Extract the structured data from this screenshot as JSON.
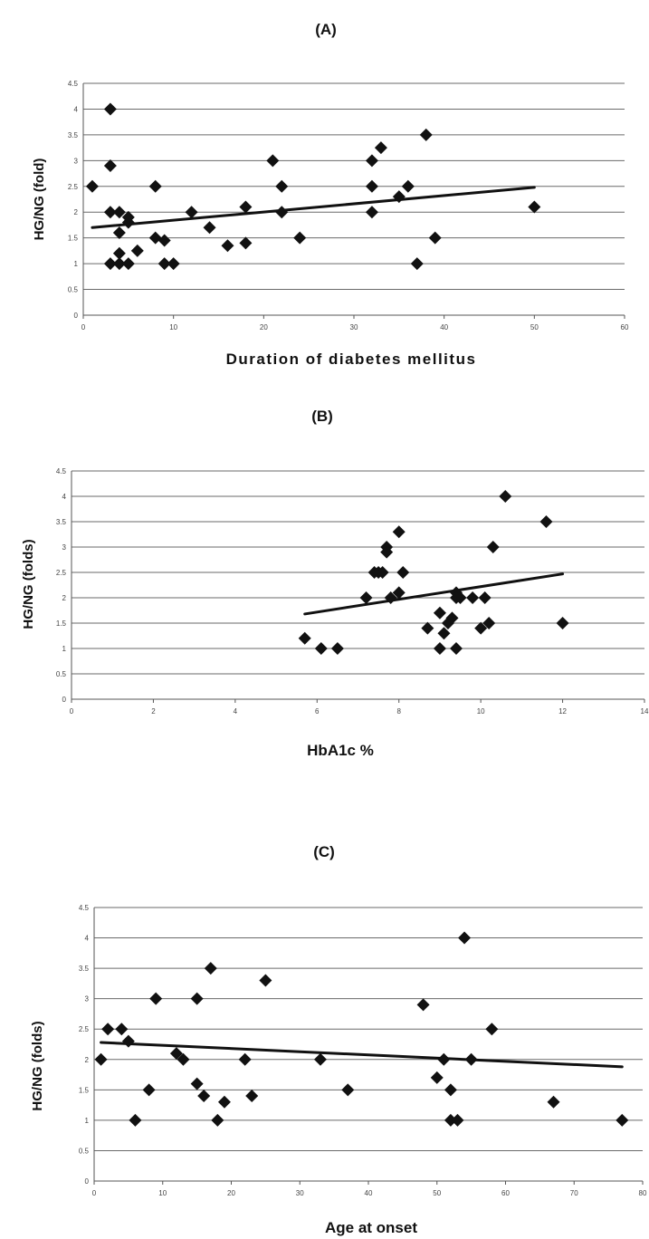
{
  "chart_data": [
    {
      "panel": "(A)",
      "type": "scatter",
      "xlabel": "Duration of diabetes mellitus",
      "ylabel": "HG/NG (fold)",
      "xlim": [
        0,
        60
      ],
      "ylim": [
        0,
        4.5
      ],
      "x_ticks": [
        0,
        10,
        20,
        30,
        40,
        50,
        60
      ],
      "y_ticks": [
        0,
        0.5,
        1,
        1.5,
        2,
        2.5,
        3,
        3.5,
        4,
        4.5
      ],
      "grid": true,
      "points": [
        {
          "x": 1,
          "y": 2.5
        },
        {
          "x": 3,
          "y": 1
        },
        {
          "x": 3,
          "y": 4
        },
        {
          "x": 3,
          "y": 2.9
        },
        {
          "x": 3,
          "y": 2
        },
        {
          "x": 4,
          "y": 1
        },
        {
          "x": 4,
          "y": 1.2
        },
        {
          "x": 4,
          "y": 2
        },
        {
          "x": 4,
          "y": 1.6
        },
        {
          "x": 5,
          "y": 1.8
        },
        {
          "x": 5,
          "y": 1.9
        },
        {
          "x": 5,
          "y": 1
        },
        {
          "x": 6,
          "y": 1.25
        },
        {
          "x": 8,
          "y": 2.5
        },
        {
          "x": 8,
          "y": 1.5
        },
        {
          "x": 9,
          "y": 1.45
        },
        {
          "x": 9,
          "y": 1
        },
        {
          "x": 10,
          "y": 1
        },
        {
          "x": 12,
          "y": 2
        },
        {
          "x": 14,
          "y": 1.7
        },
        {
          "x": 16,
          "y": 1.35
        },
        {
          "x": 18,
          "y": 2.1
        },
        {
          "x": 18,
          "y": 1.4
        },
        {
          "x": 21,
          "y": 3
        },
        {
          "x": 22,
          "y": 2.5
        },
        {
          "x": 22,
          "y": 2
        },
        {
          "x": 24,
          "y": 1.5
        },
        {
          "x": 32,
          "y": 3
        },
        {
          "x": 32,
          "y": 2
        },
        {
          "x": 32,
          "y": 2.5
        },
        {
          "x": 33,
          "y": 3.25
        },
        {
          "x": 35,
          "y": 2.3
        },
        {
          "x": 36,
          "y": 2.5
        },
        {
          "x": 37,
          "y": 1
        },
        {
          "x": 38,
          "y": 3.5
        },
        {
          "x": 39,
          "y": 1.5
        },
        {
          "x": 50,
          "y": 2.1
        }
      ],
      "trendline": [
        {
          "x": 1,
          "y": 1.7
        },
        {
          "x": 50,
          "y": 2.48
        }
      ]
    },
    {
      "panel": "(B)",
      "type": "scatter",
      "xlabel": "HbA1c %",
      "ylabel": "HG/NG (folds)",
      "xlim": [
        0,
        14
      ],
      "ylim": [
        0,
        4.5
      ],
      "x_ticks": [
        0,
        2,
        4,
        6,
        8,
        10,
        12,
        14
      ],
      "y_ticks": [
        0,
        0.5,
        1,
        1.5,
        2,
        2.5,
        3,
        3.5,
        4,
        4.5
      ],
      "grid": true,
      "points": [
        {
          "x": 5.7,
          "y": 1.2
        },
        {
          "x": 6.1,
          "y": 1
        },
        {
          "x": 6.5,
          "y": 1
        },
        {
          "x": 7.2,
          "y": 2
        },
        {
          "x": 7.4,
          "y": 2.5
        },
        {
          "x": 7.5,
          "y": 2.5
        },
        {
          "x": 7.6,
          "y": 2.5
        },
        {
          "x": 7.7,
          "y": 3
        },
        {
          "x": 7.7,
          "y": 2.9
        },
        {
          "x": 7.8,
          "y": 2
        },
        {
          "x": 8.0,
          "y": 3.3
        },
        {
          "x": 8.0,
          "y": 2.1
        },
        {
          "x": 8.1,
          "y": 2.5
        },
        {
          "x": 8.7,
          "y": 1.4
        },
        {
          "x": 9.0,
          "y": 1
        },
        {
          "x": 9.0,
          "y": 1.7
        },
        {
          "x": 9.1,
          "y": 1.3
        },
        {
          "x": 9.2,
          "y": 1.5
        },
        {
          "x": 9.3,
          "y": 1.6
        },
        {
          "x": 9.4,
          "y": 1
        },
        {
          "x": 9.4,
          "y": 2.1
        },
        {
          "x": 9.4,
          "y": 2
        },
        {
          "x": 9.5,
          "y": 2
        },
        {
          "x": 9.8,
          "y": 2
        },
        {
          "x": 10.0,
          "y": 1.4
        },
        {
          "x": 10.1,
          "y": 2
        },
        {
          "x": 10.2,
          "y": 1.5
        },
        {
          "x": 10.3,
          "y": 3
        },
        {
          "x": 10.6,
          "y": 4
        },
        {
          "x": 11.6,
          "y": 3.5
        },
        {
          "x": 12.0,
          "y": 1.5
        }
      ],
      "trendline": [
        {
          "x": 5.7,
          "y": 1.68
        },
        {
          "x": 12.0,
          "y": 2.47
        }
      ]
    },
    {
      "panel": "(C)",
      "type": "scatter",
      "xlabel": "Age at onset",
      "ylabel": "HG/NG (folds)",
      "xlim": [
        0,
        80
      ],
      "ylim": [
        0,
        4.5
      ],
      "x_ticks": [
        0,
        10,
        20,
        30,
        40,
        50,
        60,
        70,
        80
      ],
      "y_ticks": [
        0,
        0.5,
        1,
        1.5,
        2,
        2.5,
        3,
        3.5,
        4,
        4.5
      ],
      "grid": true,
      "points": [
        {
          "x": 1,
          "y": 2
        },
        {
          "x": 2,
          "y": 2.5
        },
        {
          "x": 4,
          "y": 2.5
        },
        {
          "x": 5,
          "y": 2.3
        },
        {
          "x": 6,
          "y": 1
        },
        {
          "x": 8,
          "y": 1.5
        },
        {
          "x": 9,
          "y": 3
        },
        {
          "x": 12,
          "y": 2.1
        },
        {
          "x": 13,
          "y": 2
        },
        {
          "x": 15,
          "y": 3
        },
        {
          "x": 15,
          "y": 1.6
        },
        {
          "x": 16,
          "y": 1.4
        },
        {
          "x": 17,
          "y": 3.5
        },
        {
          "x": 18,
          "y": 1
        },
        {
          "x": 19,
          "y": 1.3
        },
        {
          "x": 22,
          "y": 2
        },
        {
          "x": 23,
          "y": 1.4
        },
        {
          "x": 25,
          "y": 3.3
        },
        {
          "x": 33,
          "y": 2
        },
        {
          "x": 37,
          "y": 1.5
        },
        {
          "x": 48,
          "y": 2.9
        },
        {
          "x": 50,
          "y": 1.7
        },
        {
          "x": 51,
          "y": 2
        },
        {
          "x": 52,
          "y": 1.5
        },
        {
          "x": 52,
          "y": 1
        },
        {
          "x": 53,
          "y": 1
        },
        {
          "x": 54,
          "y": 4
        },
        {
          "x": 55,
          "y": 2
        },
        {
          "x": 58,
          "y": 2.5
        },
        {
          "x": 67,
          "y": 1.3
        },
        {
          "x": 77,
          "y": 1
        }
      ],
      "trendline": [
        {
          "x": 1,
          "y": 2.28
        },
        {
          "x": 77,
          "y": 1.88
        }
      ]
    }
  ]
}
